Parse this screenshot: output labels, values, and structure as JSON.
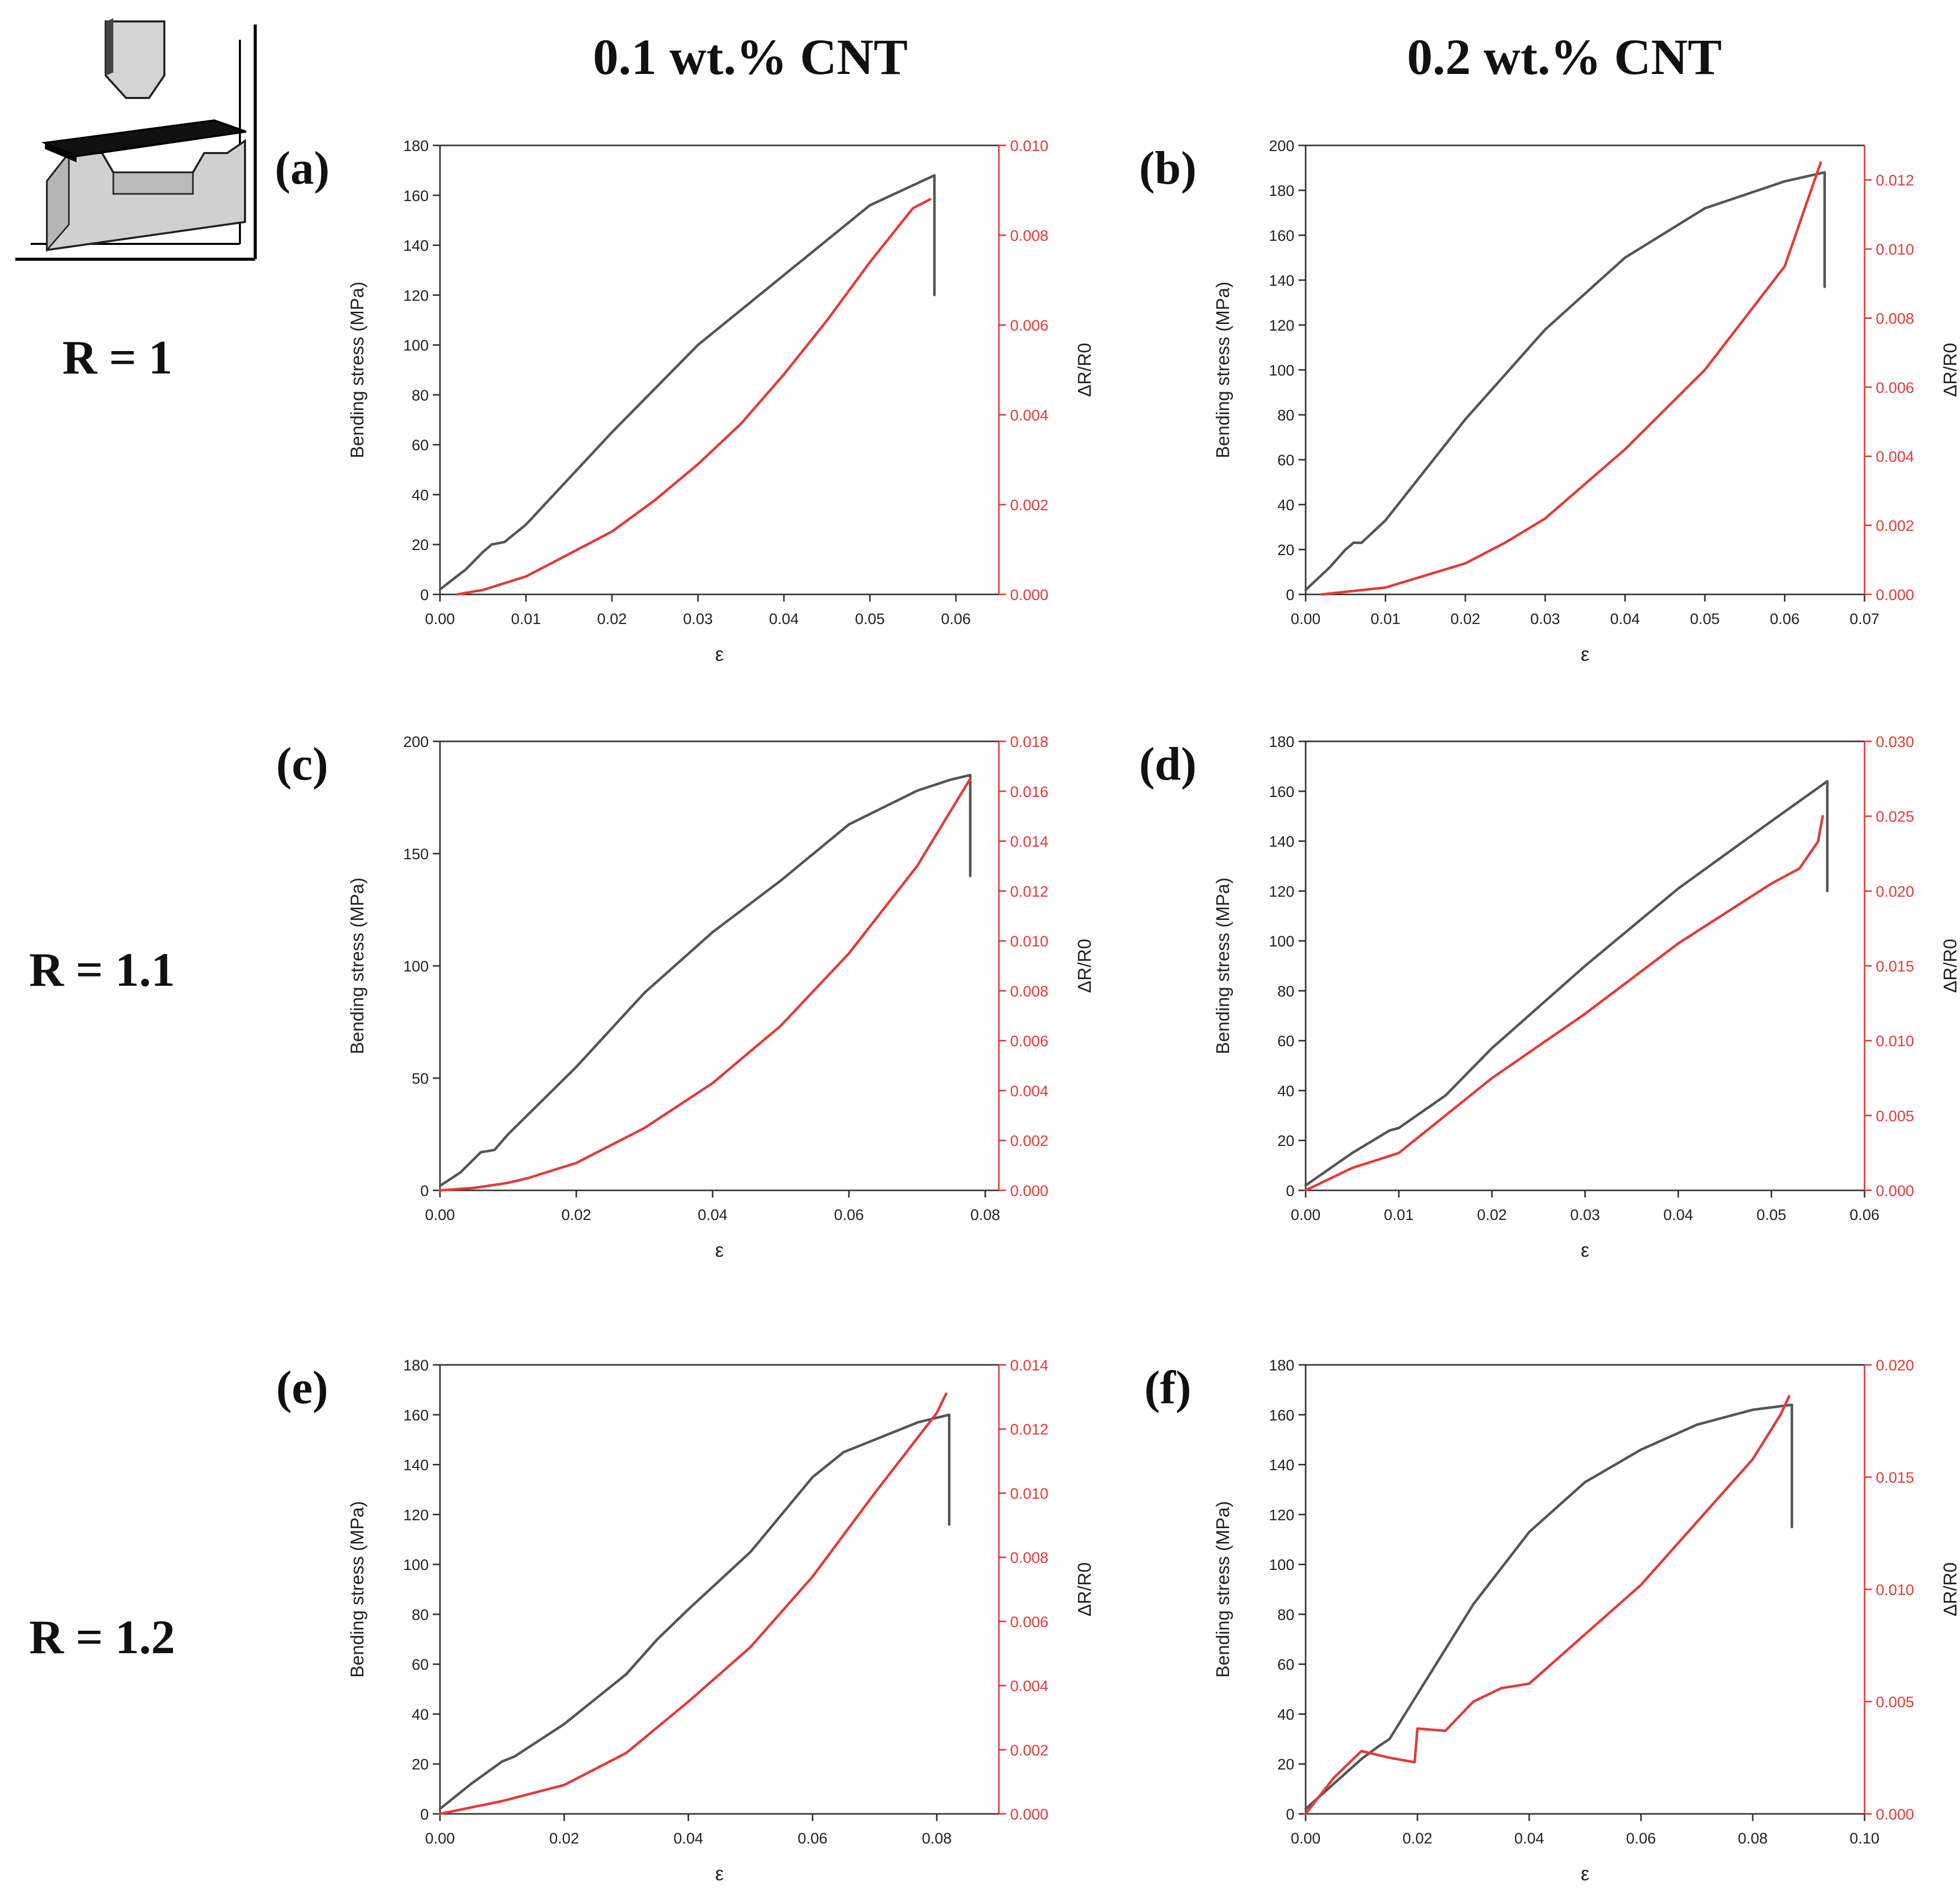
{
  "figure": {
    "column_headers": [
      "0.1 wt.% CNT",
      "0.2 wt.% CNT"
    ],
    "row_labels": [
      "R = 1",
      "R = 1.1",
      "R = 1.2"
    ],
    "colors": {
      "stress": "#555555",
      "resistance": "#e03c3c",
      "axis": "#333333"
    }
  },
  "chart_data": [
    {
      "panel": "(a)",
      "type": "line",
      "xlabel": "ε",
      "ylabel": "Bending stress (MPa)",
      "y2label": "ΔR/R0",
      "xlim": [
        0,
        0.065
      ],
      "xticks": [
        0.0,
        0.01,
        0.02,
        0.03,
        0.04,
        0.05,
        0.06
      ],
      "xdec": 2,
      "ylim": [
        0,
        180
      ],
      "yticks": [
        0,
        20,
        40,
        60,
        80,
        100,
        120,
        140,
        160,
        180
      ],
      "ydec": 0,
      "y2lim": [
        0,
        0.01
      ],
      "y2ticks": [
        0.0,
        0.002,
        0.004,
        0.006,
        0.008,
        0.01
      ],
      "y2dec": 3,
      "series": [
        {
          "axis": "left",
          "x": [
            0,
            0.003,
            0.005,
            0.006,
            0.0075,
            0.01,
            0.02,
            0.03,
            0.04,
            0.05,
            0.0575,
            0.0575
          ],
          "values": [
            2,
            10,
            17,
            20,
            21,
            28,
            65,
            100,
            128,
            156,
            168,
            120
          ]
        },
        {
          "axis": "right",
          "x": [
            0.002,
            0.005,
            0.01,
            0.015,
            0.02,
            0.025,
            0.03,
            0.035,
            0.04,
            0.045,
            0.05,
            0.055,
            0.057
          ],
          "values": [
            0,
            0.0001,
            0.0004,
            0.0009,
            0.0014,
            0.0021,
            0.0029,
            0.0038,
            0.0049,
            0.0061,
            0.0074,
            0.0086,
            0.0088
          ]
        }
      ]
    },
    {
      "panel": "(b)",
      "type": "line",
      "xlabel": "ε",
      "ylabel": "Bending stress (MPa)",
      "y2label": "ΔR/R0",
      "xlim": [
        0,
        0.07
      ],
      "xticks": [
        0.0,
        0.01,
        0.02,
        0.03,
        0.04,
        0.05,
        0.06,
        0.07
      ],
      "xdec": 2,
      "ylim": [
        0,
        200
      ],
      "yticks": [
        0,
        20,
        40,
        60,
        80,
        100,
        120,
        140,
        160,
        180,
        200
      ],
      "ydec": 0,
      "y2lim": [
        0,
        0.013
      ],
      "y2ticks": [
        0.0,
        0.002,
        0.004,
        0.006,
        0.008,
        0.01,
        0.012
      ],
      "y2dec": 3,
      "series": [
        {
          "axis": "left",
          "x": [
            0,
            0.003,
            0.005,
            0.006,
            0.007,
            0.01,
            0.02,
            0.03,
            0.04,
            0.05,
            0.06,
            0.065,
            0.065
          ],
          "values": [
            2,
            12,
            20,
            23,
            23,
            33,
            78,
            118,
            150,
            172,
            184,
            188,
            137
          ]
        },
        {
          "axis": "right",
          "x": [
            0.002,
            0.01,
            0.02,
            0.025,
            0.03,
            0.04,
            0.05,
            0.06,
            0.0645
          ],
          "values": [
            0,
            0.0002,
            0.0009,
            0.0015,
            0.0022,
            0.0042,
            0.0065,
            0.0095,
            0.0125
          ]
        }
      ]
    },
    {
      "panel": "(c)",
      "type": "line",
      "xlabel": "ε",
      "ylabel": "Bending stress (MPa)",
      "y2label": "ΔR/R0",
      "xlim": [
        0,
        0.082
      ],
      "xticks": [
        0.0,
        0.02,
        0.04,
        0.06,
        0.08
      ],
      "xdec": 2,
      "ylim": [
        0,
        200
      ],
      "yticks": [
        0,
        50,
        100,
        150,
        200
      ],
      "ydec": 0,
      "y2lim": [
        0,
        0.018
      ],
      "y2ticks": [
        0.0,
        0.002,
        0.004,
        0.006,
        0.008,
        0.01,
        0.012,
        0.014,
        0.016,
        0.018
      ],
      "y2dec": 3,
      "series": [
        {
          "axis": "left",
          "x": [
            0,
            0.003,
            0.006,
            0.008,
            0.01,
            0.02,
            0.03,
            0.04,
            0.05,
            0.06,
            0.07,
            0.075,
            0.0778,
            0.0778
          ],
          "values": [
            2,
            8,
            17,
            18,
            25,
            55,
            88,
            115,
            138,
            163,
            178,
            183,
            185,
            140
          ]
        },
        {
          "axis": "right",
          "x": [
            0,
            0.005,
            0.01,
            0.013,
            0.02,
            0.03,
            0.04,
            0.05,
            0.06,
            0.07,
            0.0778
          ],
          "values": [
            0,
            0.0001,
            0.0003,
            0.0005,
            0.0011,
            0.0025,
            0.0043,
            0.0066,
            0.0095,
            0.013,
            0.0165
          ]
        }
      ]
    },
    {
      "panel": "(d)",
      "type": "line",
      "xlabel": "ε",
      "ylabel": "Bending stress (MPa)",
      "y2label": "ΔR/R0",
      "xlim": [
        0,
        0.06
      ],
      "xticks": [
        0.0,
        0.01,
        0.02,
        0.03,
        0.04,
        0.05,
        0.06
      ],
      "xdec": 2,
      "ylim": [
        0,
        180
      ],
      "yticks": [
        0,
        20,
        40,
        60,
        80,
        100,
        120,
        140,
        160,
        180
      ],
      "ydec": 0,
      "y2lim": [
        0,
        0.03
      ],
      "y2ticks": [
        0.0,
        0.005,
        0.01,
        0.015,
        0.02,
        0.025,
        0.03
      ],
      "y2dec": 3,
      "series": [
        {
          "axis": "left",
          "x": [
            0,
            0.005,
            0.009,
            0.01,
            0.015,
            0.02,
            0.03,
            0.04,
            0.05,
            0.056,
            0.056
          ],
          "values": [
            2,
            15,
            24,
            25,
            38,
            57,
            90,
            121,
            148,
            164,
            120
          ]
        },
        {
          "axis": "right",
          "x": [
            0,
            0.005,
            0.01,
            0.015,
            0.02,
            0.03,
            0.04,
            0.05,
            0.053,
            0.055,
            0.0555
          ],
          "values": [
            0,
            0.0015,
            0.0025,
            0.005,
            0.0075,
            0.0118,
            0.0165,
            0.0205,
            0.0215,
            0.0233,
            0.025
          ]
        }
      ]
    },
    {
      "panel": "(e)",
      "type": "line",
      "xlabel": "ε",
      "ylabel": "Bending stress (MPa)",
      "y2label": "ΔR/R0",
      "xlim": [
        0,
        0.09
      ],
      "xticks": [
        0.0,
        0.02,
        0.04,
        0.06,
        0.08
      ],
      "xdec": 2,
      "ylim": [
        0,
        180
      ],
      "yticks": [
        0,
        20,
        40,
        60,
        80,
        100,
        120,
        140,
        160,
        180
      ],
      "ydec": 0,
      "y2lim": [
        0,
        0.014
      ],
      "y2ticks": [
        0.0,
        0.002,
        0.004,
        0.006,
        0.008,
        0.01,
        0.012,
        0.014
      ],
      "y2dec": 3,
      "series": [
        {
          "axis": "left",
          "x": [
            0,
            0.005,
            0.01,
            0.012,
            0.02,
            0.03,
            0.035,
            0.04,
            0.05,
            0.055,
            0.06,
            0.065,
            0.07,
            0.077,
            0.082,
            0.082
          ],
          "values": [
            2,
            12,
            21,
            23,
            36,
            56,
            70,
            82,
            105,
            120,
            135,
            145,
            150,
            157,
            160,
            116
          ]
        },
        {
          "axis": "right",
          "x": [
            0,
            0.01,
            0.02,
            0.03,
            0.04,
            0.05,
            0.06,
            0.07,
            0.08,
            0.0815
          ],
          "values": [
            0,
            0.0004,
            0.0009,
            0.0019,
            0.0035,
            0.0052,
            0.0074,
            0.01,
            0.0125,
            0.0131
          ]
        }
      ]
    },
    {
      "panel": "(f)",
      "type": "line",
      "xlabel": "ε",
      "ylabel": "Bending stress (MPa)",
      "y2label": "ΔR/R0",
      "xlim": [
        0,
        0.1
      ],
      "xticks": [
        0.0,
        0.02,
        0.04,
        0.06,
        0.08,
        0.1
      ],
      "xdec": 2,
      "ylim": [
        0,
        180
      ],
      "yticks": [
        0,
        20,
        40,
        60,
        80,
        100,
        120,
        140,
        160,
        180
      ],
      "ydec": 0,
      "y2lim": [
        0,
        0.02
      ],
      "y2ticks": [
        0.0,
        0.005,
        0.01,
        0.015,
        0.02
      ],
      "y2dec": 3,
      "series": [
        {
          "axis": "left",
          "x": [
            0,
            0.005,
            0.01,
            0.013,
            0.015,
            0.02,
            0.03,
            0.04,
            0.05,
            0.06,
            0.07,
            0.08,
            0.087,
            0.087
          ],
          "values": [
            2,
            12,
            22,
            27,
            30,
            48,
            84,
            113,
            133,
            146,
            156,
            162,
            164,
            115
          ]
        },
        {
          "axis": "right",
          "x": [
            0,
            0.005,
            0.01,
            0.015,
            0.0195,
            0.02,
            0.025,
            0.03,
            0.035,
            0.04,
            0.05,
            0.06,
            0.07,
            0.08,
            0.085,
            0.0865
          ],
          "values": [
            0,
            0.0016,
            0.0028,
            0.0025,
            0.0023,
            0.0038,
            0.0037,
            0.005,
            0.0056,
            0.0058,
            0.008,
            0.0102,
            0.013,
            0.0158,
            0.0178,
            0.0186
          ]
        }
      ]
    }
  ]
}
